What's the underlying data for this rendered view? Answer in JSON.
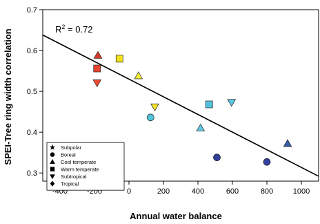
{
  "chart_data": {
    "type": "scatter",
    "xlabel": "Annual water balance",
    "ylabel": "SPEI-Tree ring width correlation",
    "xlim": [
      -500,
      1100
    ],
    "ylim": [
      0.28,
      0.7
    ],
    "x_ticks": [
      -400,
      -200,
      0,
      200,
      400,
      600,
      800,
      1000
    ],
    "x_tick_labels": [
      "-400",
      "-200",
      "0",
      "200",
      "400",
      "600",
      "800",
      "1000"
    ],
    "y_ticks": [
      0.3,
      0.4,
      0.5,
      0.6,
      0.7
    ],
    "y_tick_labels": [
      "0.3",
      "0.4",
      "0.5",
      "0.6",
      "0.7"
    ],
    "annotation": {
      "text_main": "R",
      "text_sup": "2",
      "text_rest": " = 0.72"
    },
    "regression_line": {
      "x": [
        -500,
        1100
      ],
      "y": [
        0.638,
        0.292
      ]
    },
    "legend_position": "bottom-left",
    "legend": [
      {
        "shape": "star",
        "label": "Subpolar"
      },
      {
        "shape": "circle",
        "label": "Boreal"
      },
      {
        "shape": "triangle-up",
        "label": "Cool temperate"
      },
      {
        "shape": "square",
        "label": "Warm temperate"
      },
      {
        "shape": "triangle-down",
        "label": "Subtropical"
      },
      {
        "shape": "diamond",
        "label": "Tropical"
      }
    ],
    "points": [
      {
        "x": -180,
        "y": 0.588,
        "shape": "triangle-up",
        "color": "#d43a2a"
      },
      {
        "x": -185,
        "y": 0.556,
        "shape": "square",
        "color": "#e8432e"
      },
      {
        "x": -185,
        "y": 0.521,
        "shape": "triangle-down",
        "color": "#ee4a35"
      },
      {
        "x": -55,
        "y": 0.58,
        "shape": "square",
        "color": "#f0e21c"
      },
      {
        "x": 55,
        "y": 0.538,
        "shape": "triangle-up",
        "color": "#f2ee3a"
      },
      {
        "x": 150,
        "y": 0.462,
        "shape": "triangle-down",
        "color": "#f4e629"
      },
      {
        "x": 125,
        "y": 0.436,
        "shape": "circle",
        "color": "#4fc6dc"
      },
      {
        "x": 465,
        "y": 0.468,
        "shape": "square",
        "color": "#53c2de"
      },
      {
        "x": 595,
        "y": 0.473,
        "shape": "triangle-down",
        "color": "#5ec8e6"
      },
      {
        "x": 415,
        "y": 0.41,
        "shape": "triangle-up",
        "color": "#62c9e4"
      },
      {
        "x": 510,
        "y": 0.338,
        "shape": "circle",
        "color": "#2f3f9a"
      },
      {
        "x": 800,
        "y": 0.327,
        "shape": "circle",
        "color": "#353fa0"
      },
      {
        "x": 920,
        "y": 0.372,
        "shape": "triangle-up",
        "color": "#3a5aa8"
      }
    ]
  }
}
